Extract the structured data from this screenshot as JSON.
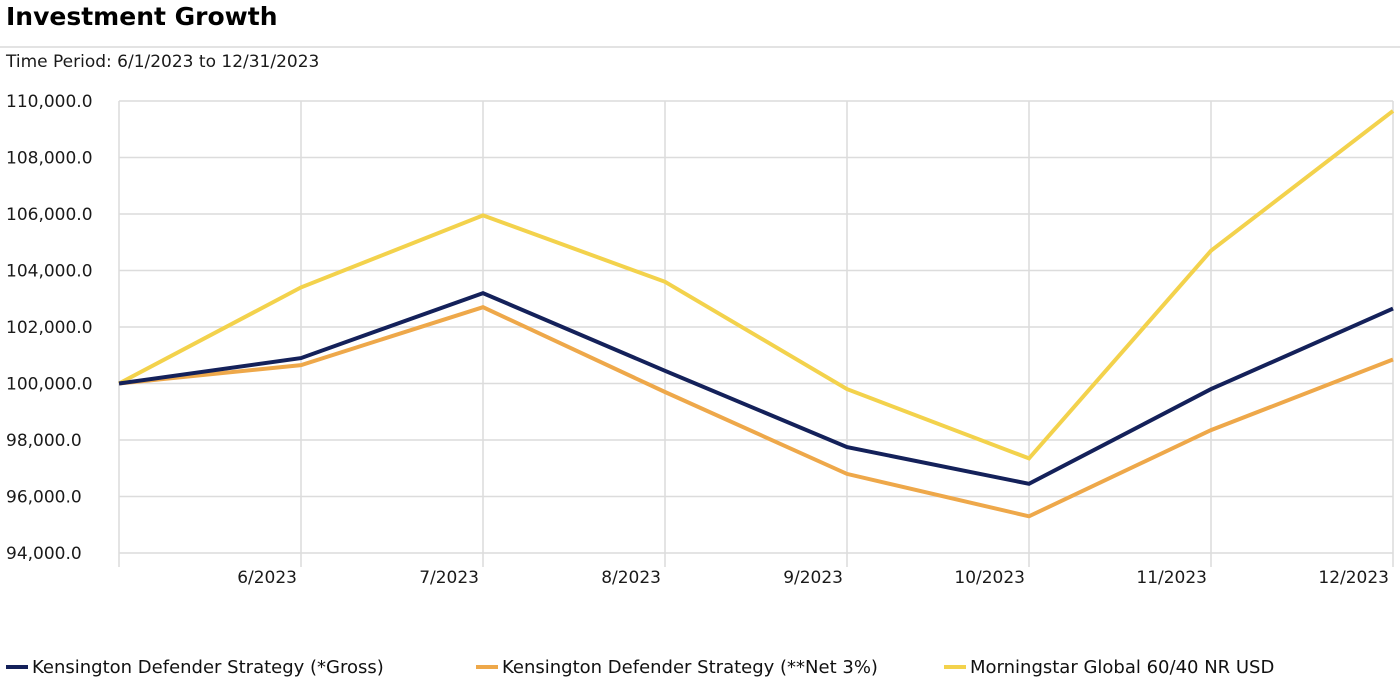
{
  "title": "Investment Growth",
  "subtitle": "Time Period: 6/1/2023 to 12/31/2023",
  "chart_data": {
    "type": "line",
    "title": "Investment Growth",
    "subtitle": "Time Period: 6/1/2023 to 12/31/2023",
    "xlabel": "",
    "ylabel": "",
    "x": [
      "",
      "6/2023",
      "7/2023",
      "8/2023",
      "9/2023",
      "10/2023",
      "11/2023",
      "12/2023"
    ],
    "ylim": [
      94000,
      110000
    ],
    "yticks": [
      94000,
      96000,
      98000,
      100000,
      102000,
      104000,
      106000,
      108000,
      110000
    ],
    "ytick_labels": [
      "94,000.0",
      "96,000.0",
      "98,000.0",
      "100,000.0",
      "102,000.0",
      "104,000.0",
      "106,000.0",
      "108,000.0",
      "110,000.0"
    ],
    "grid": true,
    "legend_position": "bottom",
    "series": [
      {
        "name": "Kensington Defender Strategy (*Gross)",
        "color": "#14215a",
        "values": [
          100000,
          100900,
          103200,
          100450,
          97750,
          96450,
          99800,
          102650
        ]
      },
      {
        "name": "Kensington Defender Strategy (**Net 3%)",
        "color": "#eea84a",
        "values": [
          100000,
          100650,
          102700,
          99700,
          96800,
          95300,
          98350,
          100850
        ]
      },
      {
        "name": "Morningstar Global 60/40 NR USD",
        "color": "#f3d24c",
        "values": [
          100000,
          103400,
          105950,
          103600,
          99800,
          97350,
          104700,
          109650
        ]
      }
    ]
  }
}
